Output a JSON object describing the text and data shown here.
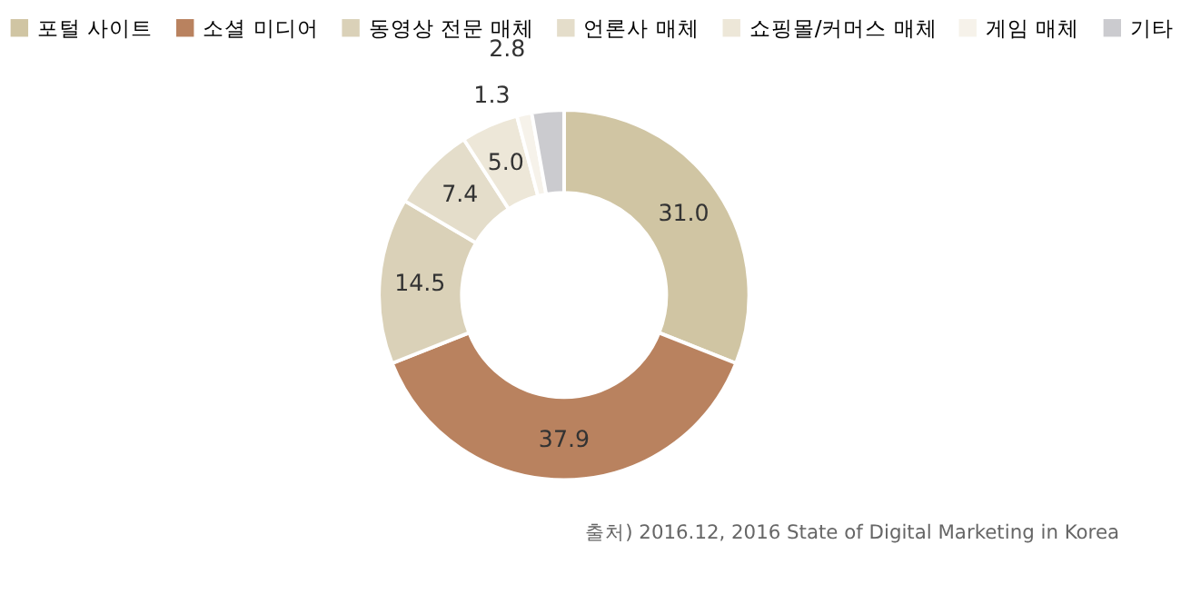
{
  "chart_data": {
    "type": "donut",
    "categories": [
      "포털 사이트",
      "소셜 미디어",
      "동영상 전문 매체",
      "언론사 매체",
      "쇼핑몰/커머스 매체",
      "게임 매체",
      "기타"
    ],
    "values": [
      31.0,
      37.9,
      14.5,
      7.4,
      5.0,
      1.3,
      2.8
    ],
    "colors": [
      "#d0c5a3",
      "#b9825f",
      "#dad1b8",
      "#e4ddca",
      "#ede7d8",
      "#f6f2ea",
      "#cbcbcf"
    ],
    "value_labels": [
      "31.0",
      "37.9",
      "14.5",
      "7.4",
      "5.0",
      "1.3",
      "2.8"
    ],
    "legend": "top",
    "annotations": [
      "출처) 2016.12, 2016 State of Digital Marketing in Korea"
    ]
  }
}
